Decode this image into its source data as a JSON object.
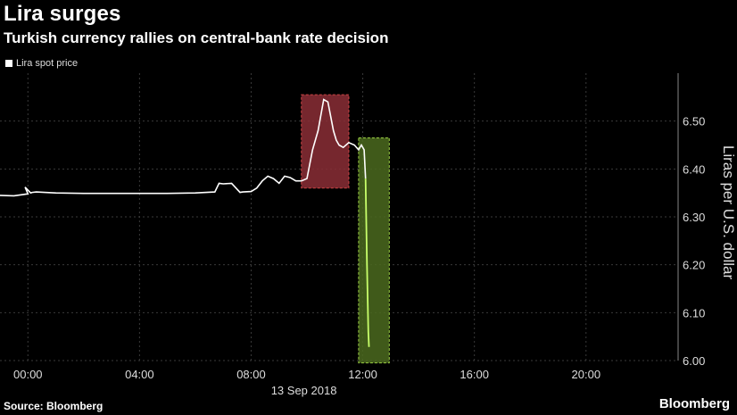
{
  "header": {
    "title": "Lira surges",
    "subtitle": "Turkish currency rallies on central-bank rate decision"
  },
  "footer": {
    "source": "Source: Bloomberg",
    "brand": "Bloomberg"
  },
  "colors": {
    "background": "#000000",
    "line": "#ffffff",
    "grid": "#3a3a3a",
    "red_box": "#8b2e36",
    "green_box": "#4b6a1f",
    "green_line": "#c8ff6a"
  },
  "chart_data": {
    "type": "line",
    "title": "Lira surges",
    "subtitle": "Turkish currency rallies on central-bank rate decision",
    "xlabel": "13 Sep 2018",
    "ylabel": "Liras per U.S. dollar",
    "ylim": [
      6.0,
      6.6
    ],
    "xlim": [
      -1.0,
      23.3
    ],
    "x_ticks": [
      0,
      4,
      8,
      12,
      16,
      20
    ],
    "x_tick_labels": [
      "00:00",
      "04:00",
      "08:00",
      "12:00",
      "16:00",
      "20:00"
    ],
    "y_ticks": [
      6.0,
      6.1,
      6.2,
      6.3,
      6.4,
      6.5
    ],
    "y_tick_labels": [
      "6.00",
      "6.10",
      "6.20",
      "6.30",
      "6.40",
      "6.50"
    ],
    "grid": true,
    "legend_position": "top-left",
    "series": [
      {
        "name": "Lira spot price",
        "x": [
          -1.0,
          -0.5,
          0.0,
          -0.1,
          0.1,
          0.15,
          0.3,
          0.6,
          1.0,
          2.0,
          3.0,
          4.0,
          5.0,
          6.0,
          6.7,
          6.85,
          7.0,
          7.3,
          7.6,
          7.7,
          8.0,
          8.2,
          8.4,
          8.6,
          8.8,
          9.0,
          9.2,
          9.4,
          9.6,
          9.8,
          10.0,
          10.2,
          10.4,
          10.6,
          10.75,
          10.85,
          10.95,
          11.05,
          11.15,
          11.3,
          11.5,
          11.7,
          11.85,
          11.95,
          12.05,
          12.1,
          12.15,
          12.2,
          12.22,
          12.25
        ],
        "y": [
          6.345,
          6.344,
          6.348,
          6.362,
          6.35,
          6.351,
          6.352,
          6.351,
          6.35,
          6.349,
          6.349,
          6.349,
          6.349,
          6.35,
          6.352,
          6.37,
          6.369,
          6.37,
          6.351,
          6.352,
          6.353,
          6.36,
          6.375,
          6.385,
          6.38,
          6.37,
          6.385,
          6.382,
          6.375,
          6.375,
          6.38,
          6.44,
          6.48,
          6.545,
          6.54,
          6.51,
          6.48,
          6.46,
          6.45,
          6.445,
          6.455,
          6.45,
          6.44,
          6.45,
          6.44,
          6.38,
          6.2,
          6.06,
          6.03,
          6.03
        ]
      }
    ],
    "highlights": [
      {
        "x": [
          9.8,
          11.5
        ],
        "y": [
          6.36,
          6.555
        ],
        "color": "red"
      },
      {
        "x": [
          11.85,
          12.95
        ],
        "y": [
          5.995,
          6.465
        ],
        "color": "green"
      }
    ]
  }
}
